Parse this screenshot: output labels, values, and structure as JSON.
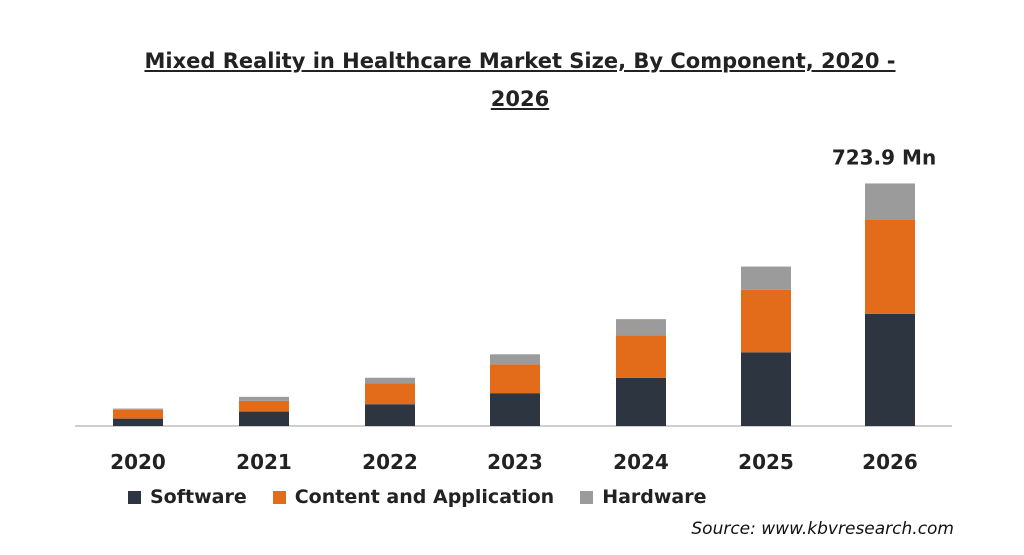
{
  "chart_data": {
    "type": "bar",
    "stacked": true,
    "title_line1": "Mixed Reality in Healthcare  Market Size, By Component, 2020 -",
    "title_line2": "2026",
    "categories": [
      "2020",
      "2021",
      "2022",
      "2023",
      "2024",
      "2025",
      "2026"
    ],
    "series": [
      {
        "name": "Software",
        "color": "#2d3640",
        "values": [
          22,
          43,
          65,
          98,
          144,
          220,
          335
        ]
      },
      {
        "name": "Content and Application",
        "color": "#e36c1b",
        "values": [
          26,
          32,
          62,
          86,
          127,
          187,
          282
        ]
      },
      {
        "name": "Hardware",
        "color": "#9b9b9b",
        "values": [
          4,
          12,
          17,
          30,
          48,
          69,
          107
        ]
      }
    ],
    "annotation": "723.9 Mn",
    "ylim": [
      0,
      750
    ],
    "grid": false,
    "legend_position": "bottom",
    "source": "Source: www.kbvresearch.com"
  }
}
